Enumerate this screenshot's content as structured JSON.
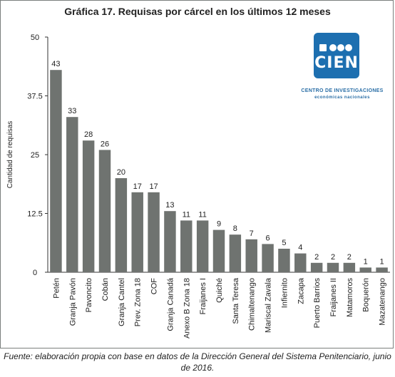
{
  "chart_data": {
    "type": "bar",
    "title": "Gráfica 17. Requisas por cárcel en los últimos 12 meses",
    "ylabel": "Cantidad de requisas",
    "xlabel": "",
    "ylim": [
      0,
      50
    ],
    "yticks": [
      "0",
      "12.5",
      "25",
      "37.5",
      "50"
    ],
    "ytick_values": [
      0,
      12.5,
      25,
      37.5,
      50
    ],
    "categories": [
      "Petén",
      "Granja Pavón",
      "Pavoncito",
      "Cobán",
      "Granja Cantel",
      "Prev. Zona 18",
      "COF",
      "Granja Canadá",
      "Anexo B Zona 18",
      "Fraijanes I",
      "Quiché",
      "Santa Teresa",
      "Chimaltenango",
      "Mariscal Zavala",
      "Infiernito",
      "Zacapa",
      "Puerto Barrios",
      "Fraijanes II",
      "Matamoros",
      "Boquerón",
      "Mazatenango"
    ],
    "values": [
      43,
      33,
      28,
      26,
      20,
      17,
      17,
      13,
      11,
      11,
      9,
      8,
      7,
      6,
      5,
      4,
      2,
      2,
      2,
      1,
      1
    ],
    "bar_color": "#6f7370",
    "grid": false,
    "legend": "none"
  },
  "logo": {
    "text": "CIEN",
    "org_name": "CENTRO DE INVESTIGACIONES",
    "org_sub": "económicas nacionales",
    "color": "#1d6fb0"
  },
  "source": "Fuente: elaboración propia con base en datos de la  Dirección General del Sistema Penitenciario, junio de 2016."
}
